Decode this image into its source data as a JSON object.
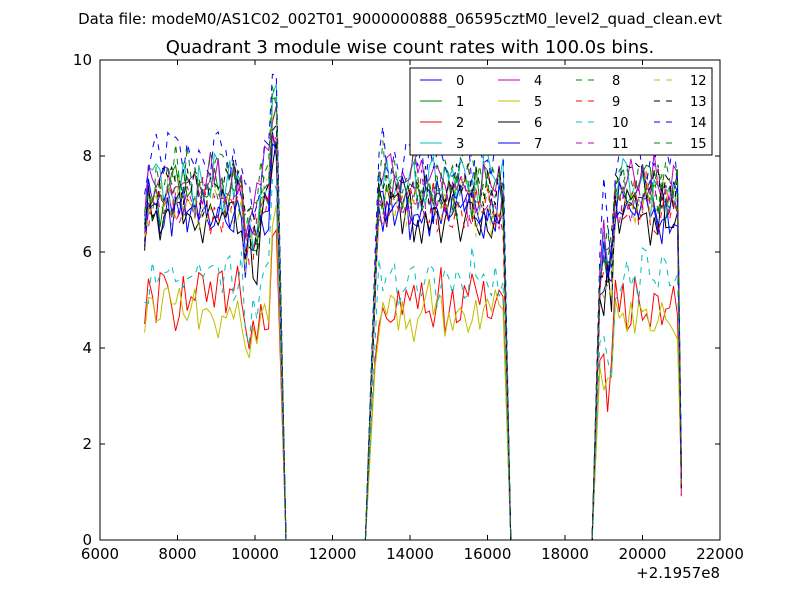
{
  "suptitle": "Data file: modeM0/AS1C02_002T01_9000000888_06595cztM0_level2_quad_clean.evt",
  "chart_data": {
    "type": "line",
    "title": "Quadrant 3 module wise count rates with 100.0s bins.",
    "xlabel": "",
    "ylabel": "",
    "x_offset_label": "+2.1957e8",
    "xlim": [
      6000,
      22000
    ],
    "ylim": [
      0,
      10
    ],
    "xticks": [
      6000,
      8000,
      10000,
      12000,
      14000,
      16000,
      18000,
      20000,
      22000
    ],
    "yticks": [
      0,
      2,
      4,
      6,
      8,
      10
    ],
    "grid": false,
    "legend_position": "top-right",
    "legend_columns": 4,
    "x_note": "x values are seconds relative to offset +2.1957e8; active segments separated by gaps where rate is 0",
    "segments": [
      {
        "start": 7150,
        "ramp_start": 7150,
        "end": 10600
      },
      {
        "start": 13100,
        "ramp_start": 12850,
        "end": 16400
      },
      {
        "start": 18900,
        "ramp_start": 18700,
        "end": 20900
      }
    ],
    "series": [
      {
        "name": "0",
        "color": "#0000ff",
        "dash": "solid",
        "level": 6.8
      },
      {
        "name": "1",
        "color": "#008000",
        "dash": "solid",
        "level": 7.2
      },
      {
        "name": "2",
        "color": "#ff0000",
        "dash": "solid",
        "level": 5.0
      },
      {
        "name": "3",
        "color": "#00bfbf",
        "dash": "solid",
        "level": 7.4
      },
      {
        "name": "4",
        "color": "#bf00bf",
        "dash": "solid",
        "level": 7.5
      },
      {
        "name": "5",
        "color": "#bfbf00",
        "dash": "solid",
        "level": 4.8
      },
      {
        "name": "6",
        "color": "#000000",
        "dash": "solid",
        "level": 6.7
      },
      {
        "name": "7",
        "color": "#0000ff",
        "dash": "solid",
        "level": 6.9
      },
      {
        "name": "8",
        "color": "#008000",
        "dash": "dashed",
        "level": 7.3
      },
      {
        "name": "9",
        "color": "#ff0000",
        "dash": "dashed",
        "level": 7.0
      },
      {
        "name": "10",
        "color": "#00bfbf",
        "dash": "dashed",
        "level": 5.5
      },
      {
        "name": "11",
        "color": "#bf00bf",
        "dash": "dashed",
        "level": 7.1
      },
      {
        "name": "12",
        "color": "#bfbf00",
        "dash": "dashed",
        "level": 7.0
      },
      {
        "name": "13",
        "color": "#000000",
        "dash": "dashed",
        "level": 7.3
      },
      {
        "name": "14",
        "color": "#0000ff",
        "dash": "dashed",
        "level": 8.0
      },
      {
        "name": "15",
        "color": "#008000",
        "dash": "dashed",
        "level": 7.6
      }
    ]
  }
}
